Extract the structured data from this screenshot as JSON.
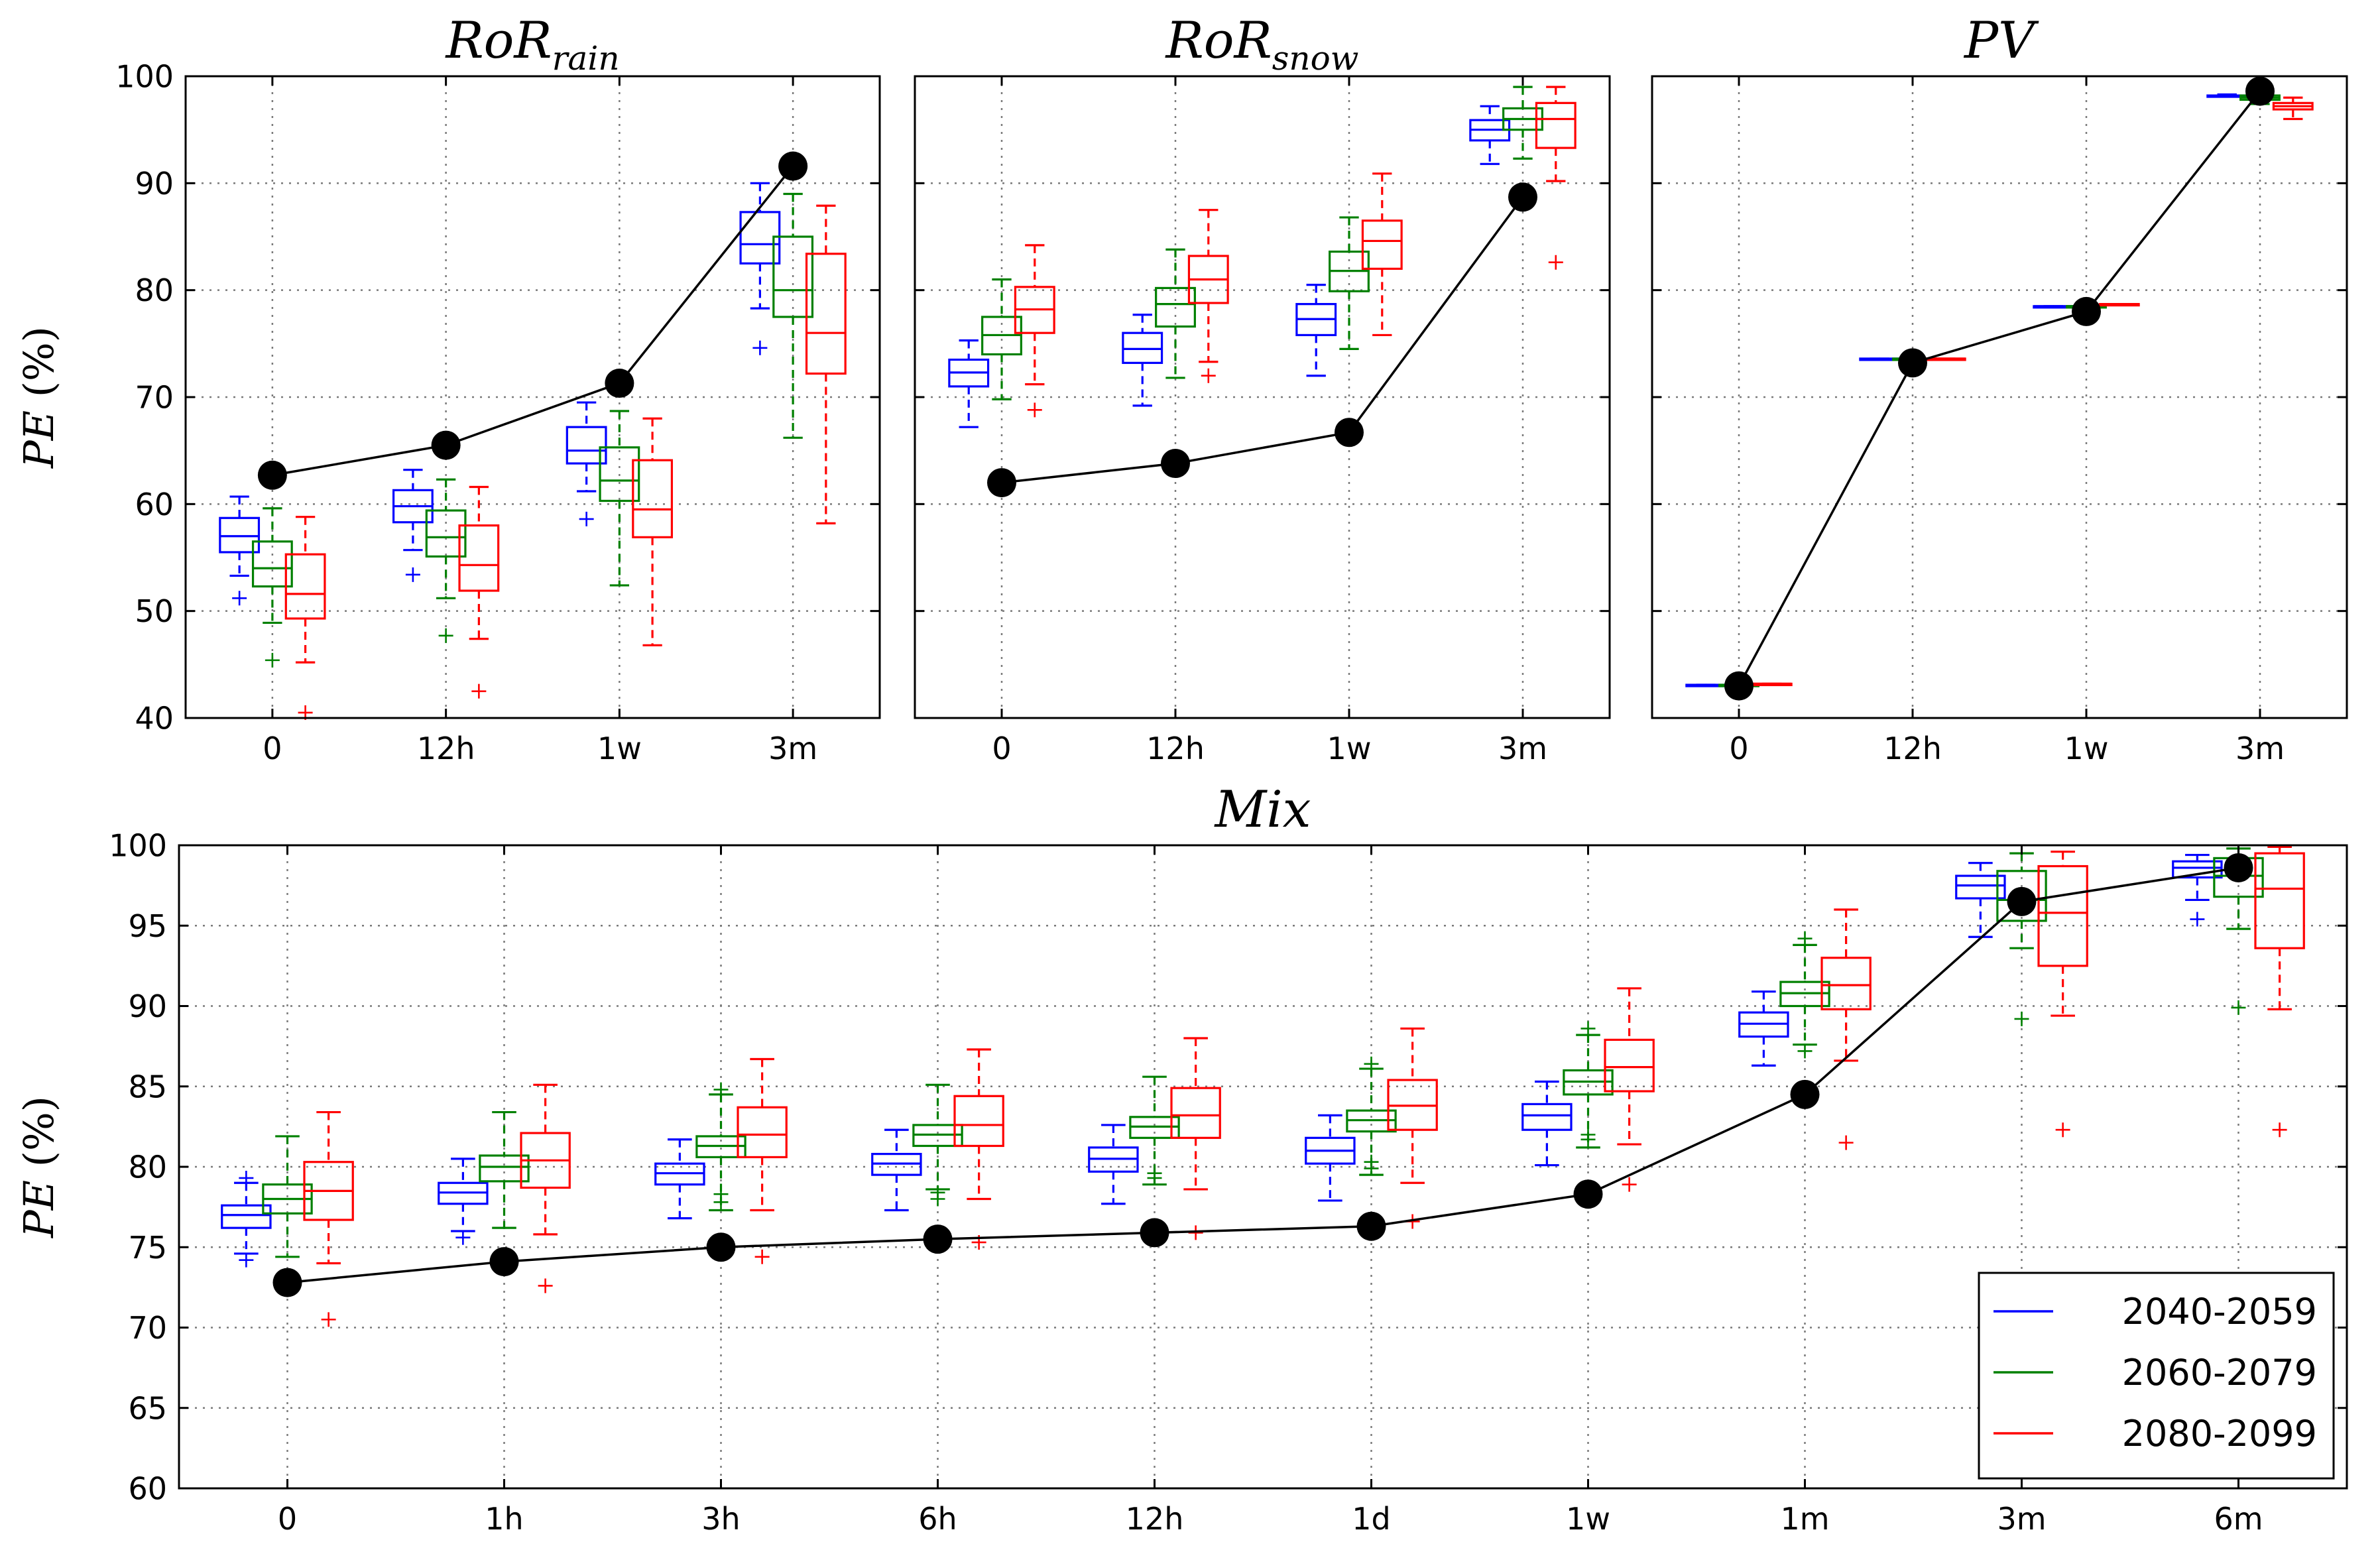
{
  "y_axis_label": {
    "var": "PE",
    "rest": " (%)"
  },
  "legend": {
    "entries": [
      {
        "label": "2040-2059",
        "color": "#0000ff"
      },
      {
        "label": "2060-2079",
        "color": "#008000"
      },
      {
        "label": "2080-2099",
        "color": "#ff0000"
      }
    ]
  },
  "chart_data": [
    {
      "type": "box",
      "title_main": "RoR",
      "title_sub": "rain",
      "categories": [
        "0",
        "12h",
        "1w",
        "3m"
      ],
      "ylim": [
        40,
        100
      ],
      "yticks": [
        "40",
        "50",
        "60",
        "70",
        "80",
        "90",
        "100"
      ],
      "grid": true,
      "observed": [
        62.7,
        65.5,
        71.3,
        91.6
      ],
      "series": [
        {
          "name": "2040-2059",
          "color": "#0000ff",
          "boxes": [
            {
              "whislo": 53.3,
              "q1": 55.5,
              "med": 57.0,
              "q3": 58.7,
              "whishi": 60.7,
              "fliers": [
                51.2
              ]
            },
            {
              "whislo": 55.7,
              "q1": 58.3,
              "med": 59.8,
              "q3": 61.3,
              "whishi": 63.2,
              "fliers": [
                53.4
              ]
            },
            {
              "whislo": 61.2,
              "q1": 63.8,
              "med": 65.0,
              "q3": 67.2,
              "whishi": 69.5,
              "fliers": [
                58.6
              ]
            },
            {
              "whislo": 78.3,
              "q1": 82.5,
              "med": 84.3,
              "q3": 87.3,
              "whishi": 90.0,
              "fliers": [
                74.6
              ]
            }
          ]
        },
        {
          "name": "2060-2079",
          "color": "#008000",
          "boxes": [
            {
              "whislo": 48.9,
              "q1": 52.3,
              "med": 54.0,
              "q3": 56.5,
              "whishi": 59.6,
              "fliers": [
                45.4
              ]
            },
            {
              "whislo": 51.2,
              "q1": 55.1,
              "med": 56.9,
              "q3": 59.4,
              "whishi": 62.3,
              "fliers": [
                47.7
              ]
            },
            {
              "whislo": 52.4,
              "q1": 60.3,
              "med": 62.2,
              "q3": 65.3,
              "whishi": 68.7,
              "fliers": []
            },
            {
              "whislo": 66.2,
              "q1": 77.5,
              "med": 80.0,
              "q3": 85.0,
              "whishi": 89.0,
              "fliers": []
            }
          ]
        },
        {
          "name": "2080-2099",
          "color": "#ff0000",
          "boxes": [
            {
              "whislo": 45.2,
              "q1": 49.3,
              "med": 51.6,
              "q3": 55.3,
              "whishi": 58.8,
              "fliers": [
                40.5
              ]
            },
            {
              "whislo": 47.4,
              "q1": 51.9,
              "med": 54.3,
              "q3": 58.0,
              "whishi": 61.6,
              "fliers": [
                42.5
              ]
            },
            {
              "whislo": 46.8,
              "q1": 56.9,
              "med": 59.5,
              "q3": 64.1,
              "whishi": 68.0,
              "fliers": []
            },
            {
              "whislo": 58.2,
              "q1": 72.2,
              "med": 76.0,
              "q3": 83.4,
              "whishi": 87.9,
              "fliers": []
            }
          ]
        }
      ]
    },
    {
      "type": "box",
      "title_main": "RoR",
      "title_sub": "snow",
      "categories": [
        "0",
        "12h",
        "1w",
        "3m"
      ],
      "ylim": [
        40,
        100
      ],
      "yticks": [
        "40",
        "50",
        "60",
        "70",
        "80",
        "90",
        "100"
      ],
      "grid": true,
      "observed": [
        62.0,
        63.8,
        66.7,
        88.7
      ],
      "series": [
        {
          "name": "2040-2059",
          "color": "#0000ff",
          "boxes": [
            {
              "whislo": 67.2,
              "q1": 71.0,
              "med": 72.3,
              "q3": 73.5,
              "whishi": 75.3,
              "fliers": []
            },
            {
              "whislo": 69.2,
              "q1": 73.2,
              "med": 74.5,
              "q3": 76.0,
              "whishi": 77.7,
              "fliers": []
            },
            {
              "whislo": 72.0,
              "q1": 75.8,
              "med": 77.3,
              "q3": 78.7,
              "whishi": 80.5,
              "fliers": []
            },
            {
              "whislo": 91.8,
              "q1": 94.0,
              "med": 95.0,
              "q3": 95.9,
              "whishi": 97.2,
              "fliers": []
            }
          ]
        },
        {
          "name": "2060-2079",
          "color": "#008000",
          "boxes": [
            {
              "whislo": 69.8,
              "q1": 74.0,
              "med": 75.8,
              "q3": 77.5,
              "whishi": 81.0,
              "fliers": []
            },
            {
              "whislo": 71.8,
              "q1": 76.6,
              "med": 78.7,
              "q3": 80.2,
              "whishi": 83.8,
              "fliers": []
            },
            {
              "whislo": 74.5,
              "q1": 79.9,
              "med": 81.8,
              "q3": 83.6,
              "whishi": 86.8,
              "fliers": []
            },
            {
              "whislo": 92.3,
              "q1": 95.0,
              "med": 96.0,
              "q3": 97.0,
              "whishi": 99.0,
              "fliers": []
            }
          ]
        },
        {
          "name": "2080-2099",
          "color": "#ff0000",
          "boxes": [
            {
              "whislo": 71.2,
              "q1": 76.0,
              "med": 78.2,
              "q3": 80.3,
              "whishi": 84.2,
              "fliers": [
                68.8
              ]
            },
            {
              "whislo": 73.3,
              "q1": 78.8,
              "med": 81.0,
              "q3": 83.2,
              "whishi": 87.5,
              "fliers": [
                72.0
              ]
            },
            {
              "whislo": 75.8,
              "q1": 82.0,
              "med": 84.6,
              "q3": 86.5,
              "whishi": 90.9,
              "fliers": []
            },
            {
              "whislo": 90.2,
              "q1": 93.3,
              "med": 96.0,
              "q3": 97.5,
              "whishi": 99.0,
              "fliers": [
                82.6
              ]
            }
          ]
        }
      ]
    },
    {
      "type": "box",
      "title_main": "PV",
      "title_sub": "",
      "categories": [
        "0",
        "12h",
        "1w",
        "3m"
      ],
      "ylim": [
        40,
        100
      ],
      "yticks": [
        "40",
        "50",
        "60",
        "70",
        "80",
        "90",
        "100"
      ],
      "grid": true,
      "observed": [
        43.0,
        73.2,
        78.0,
        98.6
      ],
      "series": [
        {
          "name": "2040-2059",
          "color": "#0000ff",
          "boxes": [
            {
              "whislo": 43.0,
              "q1": 43.0,
              "med": 43.0,
              "q3": 43.1,
              "whishi": 43.1,
              "fliers": []
            },
            {
              "whislo": 73.5,
              "q1": 73.5,
              "med": 73.5,
              "q3": 73.6,
              "whishi": 73.6,
              "fliers": []
            },
            {
              "whislo": 78.4,
              "q1": 78.4,
              "med": 78.5,
              "q3": 78.5,
              "whishi": 78.5,
              "fliers": []
            },
            {
              "whislo": 98.1,
              "q1": 98.1,
              "med": 98.2,
              "q3": 98.2,
              "whishi": 98.3,
              "fliers": []
            }
          ]
        },
        {
          "name": "2060-2079",
          "color": "#008000",
          "boxes": [
            {
              "whislo": 42.9,
              "q1": 43.0,
              "med": 43.0,
              "q3": 43.1,
              "whishi": 43.1,
              "fliers": []
            },
            {
              "whislo": 73.5,
              "q1": 73.5,
              "med": 73.5,
              "q3": 73.6,
              "whishi": 73.6,
              "fliers": []
            },
            {
              "whislo": 78.4,
              "q1": 78.4,
              "med": 78.5,
              "q3": 78.5,
              "whishi": 78.6,
              "fliers": []
            },
            {
              "whislo": 97.4,
              "q1": 97.8,
              "med": 98.0,
              "q3": 98.2,
              "whishi": 98.4,
              "fliers": []
            }
          ]
        },
        {
          "name": "2080-2099",
          "color": "#ff0000",
          "boxes": [
            {
              "whislo": 43.1,
              "q1": 43.1,
              "med": 43.2,
              "q3": 43.2,
              "whishi": 43.2,
              "fliers": []
            },
            {
              "whislo": 73.5,
              "q1": 73.5,
              "med": 73.6,
              "q3": 73.6,
              "whishi": 73.6,
              "fliers": []
            },
            {
              "whislo": 78.6,
              "q1": 78.6,
              "med": 78.7,
              "q3": 78.7,
              "whishi": 78.7,
              "fliers": []
            },
            {
              "whislo": 96.0,
              "q1": 96.9,
              "med": 97.2,
              "q3": 97.5,
              "whishi": 98.0,
              "fliers": []
            }
          ]
        }
      ]
    },
    {
      "type": "box",
      "title_main": "Mix",
      "title_sub": "",
      "categories": [
        "0",
        "1h",
        "3h",
        "6h",
        "12h",
        "1d",
        "1w",
        "1m",
        "3m",
        "6m"
      ],
      "ylim": [
        60,
        100
      ],
      "yticks": [
        "60",
        "65",
        "70",
        "75",
        "80",
        "85",
        "90",
        "95",
        "100"
      ],
      "grid": true,
      "observed": [
        72.8,
        74.1,
        75.0,
        75.5,
        75.9,
        76.3,
        78.3,
        84.5,
        96.5,
        98.6
      ],
      "series": [
        {
          "name": "2040-2059",
          "color": "#0000ff",
          "boxes": [
            {
              "whislo": 74.6,
              "q1": 76.2,
              "med": 77.0,
              "q3": 77.6,
              "whishi": 79.0,
              "fliers": [
                79.3,
                74.2
              ]
            },
            {
              "whislo": 76.0,
              "q1": 77.7,
              "med": 78.4,
              "q3": 79.0,
              "whishi": 80.5,
              "fliers": [
                75.6
              ]
            },
            {
              "whislo": 76.8,
              "q1": 78.9,
              "med": 79.6,
              "q3": 80.2,
              "whishi": 81.7,
              "fliers": []
            },
            {
              "whislo": 77.3,
              "q1": 79.5,
              "med": 80.2,
              "q3": 80.8,
              "whishi": 82.3,
              "fliers": []
            },
            {
              "whislo": 77.7,
              "q1": 79.7,
              "med": 80.5,
              "q3": 81.2,
              "whishi": 82.6,
              "fliers": []
            },
            {
              "whislo": 77.9,
              "q1": 80.2,
              "med": 81.0,
              "q3": 81.8,
              "whishi": 83.2,
              "fliers": []
            },
            {
              "whislo": 80.1,
              "q1": 82.3,
              "med": 83.2,
              "q3": 83.9,
              "whishi": 85.3,
              "fliers": []
            },
            {
              "whislo": 86.3,
              "q1": 88.1,
              "med": 88.9,
              "q3": 89.6,
              "whishi": 90.9,
              "fliers": []
            },
            {
              "whislo": 94.3,
              "q1": 96.7,
              "med": 97.5,
              "q3": 98.1,
              "whishi": 98.9,
              "fliers": []
            },
            {
              "whislo": 96.6,
              "q1": 98.0,
              "med": 98.6,
              "q3": 99.0,
              "whishi": 99.4,
              "fliers": [
                95.4
              ]
            }
          ]
        },
        {
          "name": "2060-2079",
          "color": "#008000",
          "boxes": [
            {
              "whislo": 74.4,
              "q1": 77.1,
              "med": 78.0,
              "q3": 78.9,
              "whishi": 81.9,
              "fliers": []
            },
            {
              "whislo": 76.2,
              "q1": 79.1,
              "med": 80.0,
              "q3": 80.7,
              "whishi": 83.4,
              "fliers": []
            },
            {
              "whislo": 77.3,
              "q1": 80.6,
              "med": 81.3,
              "q3": 81.9,
              "whishi": 84.5,
              "fliers": [
                77.8,
                78.3,
                84.8
              ]
            },
            {
              "whislo": 78.6,
              "q1": 81.3,
              "med": 82.0,
              "q3": 82.6,
              "whishi": 85.1,
              "fliers": [
                78.0,
                78.4
              ]
            },
            {
              "whislo": 78.9,
              "q1": 81.8,
              "med": 82.5,
              "q3": 83.1,
              "whishi": 85.6,
              "fliers": [
                79.3,
                79.6
              ]
            },
            {
              "whislo": 79.5,
              "q1": 82.2,
              "med": 82.9,
              "q3": 83.5,
              "whishi": 86.1,
              "fliers": [
                79.9,
                80.3,
                86.4
              ]
            },
            {
              "whislo": 81.2,
              "q1": 84.5,
              "med": 85.3,
              "q3": 86.0,
              "whishi": 88.2,
              "fliers": [
                81.7,
                82.0,
                88.6
              ]
            },
            {
              "whislo": 87.6,
              "q1": 90.0,
              "med": 90.8,
              "q3": 91.5,
              "whishi": 93.8,
              "fliers": [
                87.2,
                94.2
              ]
            },
            {
              "whislo": 93.6,
              "q1": 95.3,
              "med": 96.6,
              "q3": 98.4,
              "whishi": 99.5,
              "fliers": [
                89.2
              ]
            },
            {
              "whislo": 94.8,
              "q1": 96.8,
              "med": 98.1,
              "q3": 99.2,
              "whishi": 99.8,
              "fliers": [
                89.9
              ]
            }
          ]
        },
        {
          "name": "2080-2099",
          "color": "#ff0000",
          "boxes": [
            {
              "whislo": 74.0,
              "q1": 76.7,
              "med": 78.5,
              "q3": 80.3,
              "whishi": 83.4,
              "fliers": [
                70.5
              ]
            },
            {
              "whislo": 75.8,
              "q1": 78.7,
              "med": 80.4,
              "q3": 82.1,
              "whishi": 85.1,
              "fliers": [
                72.6
              ]
            },
            {
              "whislo": 77.3,
              "q1": 80.6,
              "med": 82.0,
              "q3": 83.7,
              "whishi": 86.7,
              "fliers": [
                74.4
              ]
            },
            {
              "whislo": 78.0,
              "q1": 81.3,
              "med": 82.6,
              "q3": 84.4,
              "whishi": 87.3,
              "fliers": [
                75.3
              ]
            },
            {
              "whislo": 78.6,
              "q1": 81.8,
              "med": 83.2,
              "q3": 84.9,
              "whishi": 88.0,
              "fliers": [
                75.9
              ]
            },
            {
              "whislo": 79.0,
              "q1": 82.3,
              "med": 83.8,
              "q3": 85.4,
              "whishi": 88.6,
              "fliers": [
                76.6
              ]
            },
            {
              "whislo": 81.4,
              "q1": 84.7,
              "med": 86.2,
              "q3": 87.9,
              "whishi": 91.1,
              "fliers": [
                78.9
              ]
            },
            {
              "whislo": 86.6,
              "q1": 89.8,
              "med": 91.3,
              "q3": 93.0,
              "whishi": 96.0,
              "fliers": [
                81.5
              ]
            },
            {
              "whislo": 89.4,
              "q1": 92.5,
              "med": 95.8,
              "q3": 98.7,
              "whishi": 99.6,
              "fliers": [
                82.3
              ]
            },
            {
              "whislo": 89.8,
              "q1": 93.6,
              "med": 97.3,
              "q3": 99.5,
              "whishi": 99.9,
              "fliers": [
                82.3
              ]
            }
          ]
        }
      ]
    }
  ]
}
